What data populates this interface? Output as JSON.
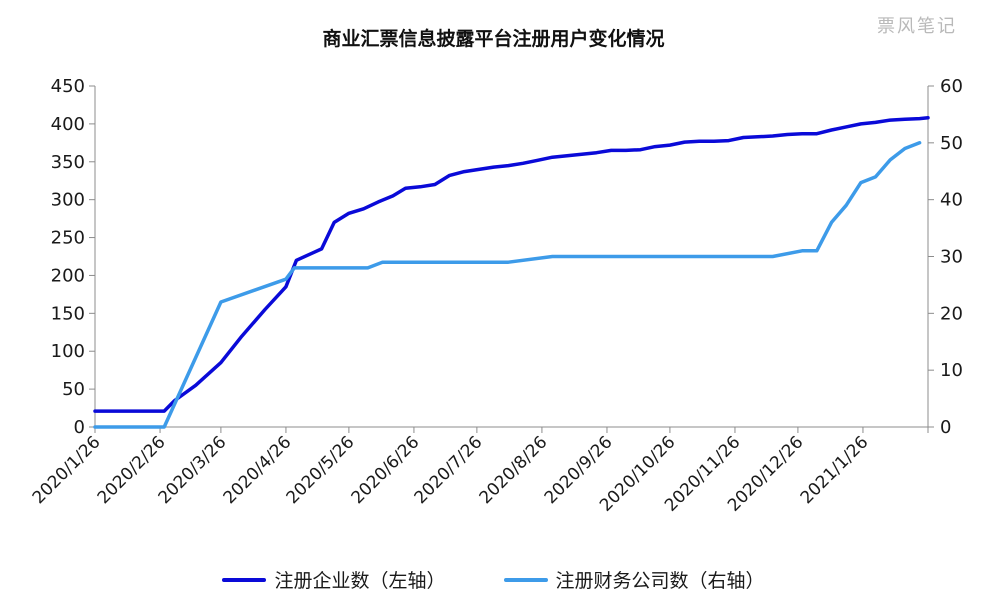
{
  "watermark": "票风笔记",
  "chart_data": {
    "type": "line",
    "title": "商业汇票信息披露平台注册用户变化情况",
    "y_left": {
      "ticks": [
        0,
        50,
        100,
        150,
        200,
        250,
        300,
        350,
        400,
        450
      ],
      "range": [
        0,
        450
      ]
    },
    "y_right": {
      "ticks": [
        0,
        10,
        20,
        30,
        40,
        50,
        60
      ],
      "range": [
        0,
        60
      ]
    },
    "x_tick_labels": [
      "2020/1/26",
      "2020/2/26",
      "2020/3/26",
      "2020/4/26",
      "2020/5/26",
      "2020/6/26",
      "2020/7/26",
      "2020/8/26",
      "2020/9/26",
      "2020/10/26",
      "2020/11/26",
      "2020/12/26",
      "2021/1/26"
    ],
    "x_range": [
      "2020-01-26",
      "2021-02-26"
    ],
    "series": [
      {
        "name": "注册企业数（左轴）",
        "axis": "left",
        "color": "#0a0ad8",
        "points": [
          [
            "2020-01-26",
            21
          ],
          [
            "2020-02-28",
            21
          ],
          [
            "2020-03-04",
            35
          ],
          [
            "2020-03-14",
            55
          ],
          [
            "2020-03-26",
            85
          ],
          [
            "2020-04-05",
            120
          ],
          [
            "2020-04-16",
            155
          ],
          [
            "2020-04-26",
            185
          ],
          [
            "2020-05-01",
            220
          ],
          [
            "2020-05-09",
            230
          ],
          [
            "2020-05-13",
            235
          ],
          [
            "2020-05-19",
            270
          ],
          [
            "2020-05-26",
            282
          ],
          [
            "2020-06-02",
            288
          ],
          [
            "2020-06-09",
            297
          ],
          [
            "2020-06-16",
            305
          ],
          [
            "2020-06-22",
            315
          ],
          [
            "2020-06-29",
            317
          ],
          [
            "2020-07-06",
            320
          ],
          [
            "2020-07-13",
            332
          ],
          [
            "2020-07-20",
            337
          ],
          [
            "2020-07-27",
            340
          ],
          [
            "2020-08-03",
            343
          ],
          [
            "2020-08-10",
            345
          ],
          [
            "2020-08-17",
            348
          ],
          [
            "2020-08-24",
            352
          ],
          [
            "2020-08-31",
            356
          ],
          [
            "2020-09-07",
            358
          ],
          [
            "2020-09-14",
            360
          ],
          [
            "2020-09-21",
            362
          ],
          [
            "2020-09-28",
            365
          ],
          [
            "2020-10-05",
            365
          ],
          [
            "2020-10-12",
            366
          ],
          [
            "2020-10-19",
            370
          ],
          [
            "2020-10-26",
            372
          ],
          [
            "2020-11-02",
            376
          ],
          [
            "2020-11-09",
            377
          ],
          [
            "2020-11-16",
            377
          ],
          [
            "2020-11-23",
            378
          ],
          [
            "2020-11-30",
            382
          ],
          [
            "2020-12-07",
            383
          ],
          [
            "2020-12-14",
            384
          ],
          [
            "2020-12-21",
            386
          ],
          [
            "2020-12-28",
            387
          ],
          [
            "2021-01-04",
            387
          ],
          [
            "2021-01-11",
            392
          ],
          [
            "2021-01-18",
            396
          ],
          [
            "2021-01-25",
            400
          ],
          [
            "2021-02-01",
            402
          ],
          [
            "2021-02-08",
            405
          ],
          [
            "2021-02-15",
            406
          ],
          [
            "2021-02-22",
            407
          ],
          [
            "2021-02-26",
            408
          ]
        ]
      },
      {
        "name": "注册财务公司数（右轴）",
        "axis": "right",
        "color": "#3d9be9",
        "points": [
          [
            "2020-01-26",
            0
          ],
          [
            "2020-02-28",
            0
          ],
          [
            "2020-03-26",
            22
          ],
          [
            "2020-04-26",
            26
          ],
          [
            "2020-04-30",
            28
          ],
          [
            "2020-06-04",
            28
          ],
          [
            "2020-06-11",
            29
          ],
          [
            "2020-08-10",
            29
          ],
          [
            "2020-08-31",
            30
          ],
          [
            "2020-12-14",
            30
          ],
          [
            "2020-12-28",
            31
          ],
          [
            "2021-01-04",
            31
          ],
          [
            "2021-01-11",
            36
          ],
          [
            "2021-01-18",
            39
          ],
          [
            "2021-01-25",
            43
          ],
          [
            "2021-02-01",
            44
          ],
          [
            "2021-02-08",
            47
          ],
          [
            "2021-02-15",
            49
          ],
          [
            "2021-02-22",
            50
          ]
        ]
      }
    ],
    "legend": "bottom",
    "grid": false
  }
}
